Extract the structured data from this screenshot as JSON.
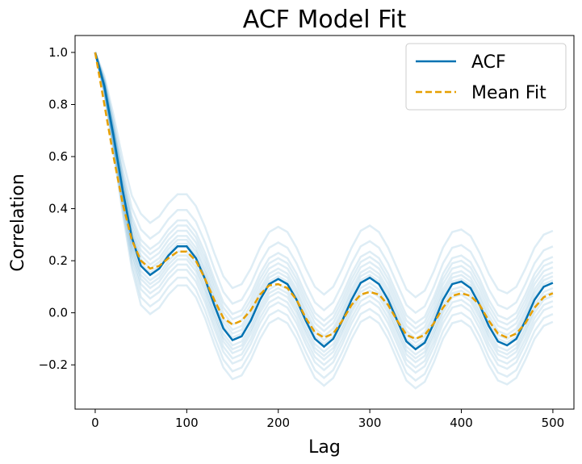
{
  "chart_data": {
    "type": "line",
    "title": "ACF Model Fit",
    "xlabel": "Lag",
    "ylabel": "Correlation",
    "xlim": [
      -22,
      523
    ],
    "ylim": [
      -0.37,
      1.065
    ],
    "xticks": [
      0,
      100,
      200,
      300,
      400,
      500
    ],
    "yticks": [
      -0.2,
      0.0,
      0.2,
      0.4,
      0.6,
      0.8,
      1.0
    ],
    "xtick_labels": [
      "0",
      "100",
      "200",
      "300",
      "400",
      "500"
    ],
    "ytick_labels": [
      "−0.2",
      "0.0",
      "0.2",
      "0.4",
      "0.6",
      "0.8",
      "1.0"
    ],
    "grid": false,
    "legend_position": "top-right",
    "series": [
      {
        "name": "ACF",
        "color": "#0072b2",
        "style": "solid",
        "x": [
          0,
          10,
          20,
          30,
          40,
          50,
          60,
          70,
          80,
          90,
          100,
          110,
          120,
          130,
          140,
          150,
          160,
          170,
          180,
          190,
          200,
          210,
          220,
          230,
          240,
          250,
          260,
          270,
          280,
          290,
          300,
          310,
          320,
          330,
          340,
          350,
          360,
          370,
          380,
          390,
          400,
          410,
          420,
          430,
          440,
          450,
          460,
          470,
          480,
          490,
          500
        ],
        "y": [
          1.0,
          0.87,
          0.68,
          0.47,
          0.29,
          0.18,
          0.145,
          0.17,
          0.22,
          0.255,
          0.255,
          0.21,
          0.13,
          0.03,
          -0.06,
          -0.105,
          -0.09,
          -0.03,
          0.05,
          0.11,
          0.13,
          0.11,
          0.05,
          -0.03,
          -0.1,
          -0.13,
          -0.1,
          -0.03,
          0.05,
          0.115,
          0.135,
          0.11,
          0.05,
          -0.03,
          -0.11,
          -0.14,
          -0.115,
          -0.04,
          0.05,
          0.11,
          0.12,
          0.095,
          0.03,
          -0.05,
          -0.11,
          -0.125,
          -0.1,
          -0.03,
          0.05,
          0.1,
          0.115
        ]
      },
      {
        "name": "Mean Fit",
        "color": "#e69f00",
        "style": "dashed",
        "x": [
          0,
          10,
          20,
          30,
          40,
          50,
          60,
          70,
          80,
          90,
          100,
          110,
          120,
          130,
          140,
          150,
          160,
          170,
          180,
          190,
          200,
          210,
          220,
          230,
          240,
          250,
          260,
          270,
          280,
          290,
          300,
          310,
          320,
          330,
          340,
          350,
          360,
          370,
          380,
          390,
          400,
          410,
          420,
          430,
          440,
          450,
          460,
          470,
          480,
          490,
          500
        ],
        "y": [
          1.0,
          0.8,
          0.6,
          0.42,
          0.28,
          0.2,
          0.17,
          0.18,
          0.21,
          0.235,
          0.235,
          0.2,
          0.13,
          0.05,
          -0.02,
          -0.045,
          -0.03,
          0.01,
          0.07,
          0.105,
          0.11,
          0.095,
          0.05,
          -0.02,
          -0.075,
          -0.095,
          -0.08,
          -0.03,
          0.03,
          0.07,
          0.08,
          0.07,
          0.03,
          -0.03,
          -0.085,
          -0.1,
          -0.085,
          -0.04,
          0.02,
          0.065,
          0.075,
          0.065,
          0.03,
          -0.03,
          -0.08,
          -0.095,
          -0.08,
          -0.04,
          0.02,
          0.06,
          0.075
        ]
      }
    ],
    "background_curves": {
      "color": "#0072b2",
      "opacity": 0.13,
      "offsets": [
        -0.15,
        -0.12,
        -0.09,
        -0.07,
        -0.05,
        -0.035,
        -0.02,
        0.01,
        0.025,
        0.04,
        0.06,
        0.08,
        0.1,
        0.14,
        0.2
      ]
    }
  }
}
